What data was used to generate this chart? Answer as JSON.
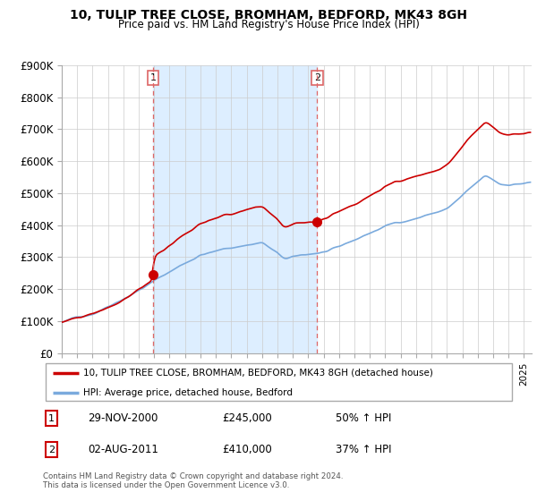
{
  "title1": "10, TULIP TREE CLOSE, BROMHAM, BEDFORD, MK43 8GH",
  "title2": "Price paid vs. HM Land Registry's House Price Index (HPI)",
  "ylim": [
    0,
    900000
  ],
  "xlim_start": 1995.0,
  "xlim_end": 2025.5,
  "sale1_x": 2000.917,
  "sale1_y": 245000,
  "sale2_x": 2011.583,
  "sale2_y": 410000,
  "legend_line1": "10, TULIP TREE CLOSE, BROMHAM, BEDFORD, MK43 8GH (detached house)",
  "legend_line2": "HPI: Average price, detached house, Bedford",
  "annotation1_date": "29-NOV-2000",
  "annotation1_price": "£245,000",
  "annotation1_hpi": "50% ↑ HPI",
  "annotation2_date": "02-AUG-2011",
  "annotation2_price": "£410,000",
  "annotation2_hpi": "37% ↑ HPI",
  "footnote": "Contains HM Land Registry data © Crown copyright and database right 2024.\nThis data is licensed under the Open Government Licence v3.0.",
  "red_color": "#cc0000",
  "blue_color": "#7aaadd",
  "shade_color": "#ddeeff",
  "vline_color": "#dd6666"
}
